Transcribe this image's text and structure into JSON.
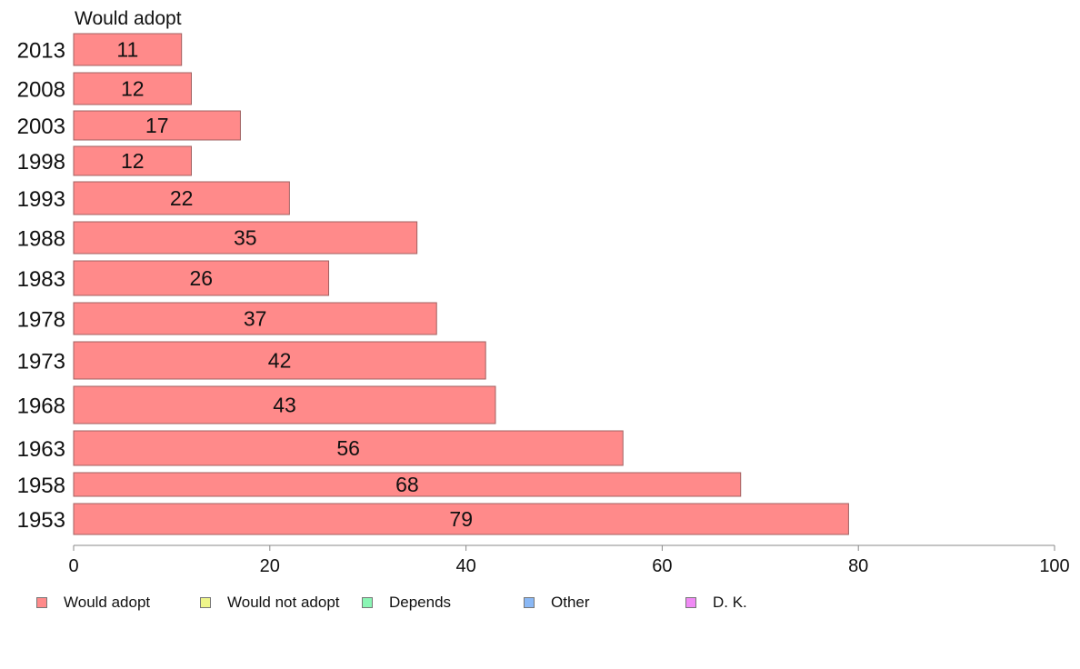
{
  "chart_data": {
    "type": "bar",
    "orientation": "horizontal",
    "series_title": "Would adopt",
    "categories": [
      "2013",
      "2008",
      "2003",
      "1998",
      "1993",
      "1988",
      "1983",
      "1978",
      "1973",
      "1968",
      "1963",
      "1958",
      "1953"
    ],
    "values": [
      11,
      12,
      17,
      12,
      22,
      35,
      26,
      37,
      42,
      43,
      56,
      68,
      79
    ],
    "value_labels": [
      "11",
      "12",
      "17",
      "12",
      "22",
      "35",
      "26",
      "37",
      "42",
      "43",
      "56",
      "68",
      "79"
    ],
    "xlim": [
      0,
      100
    ],
    "x_ticks": [
      "0",
      "20",
      "40",
      "60",
      "80",
      "100"
    ],
    "grid": false,
    "legend_position": "bottom",
    "legend": [
      {
        "label": "Would adopt",
        "color": "#ff8a8a"
      },
      {
        "label": "Would not adopt",
        "color": "#eef58a"
      },
      {
        "label": "Depends",
        "color": "#8af5b4"
      },
      {
        "label": "Other",
        "color": "#8ab8f5"
      },
      {
        "label": "D. K.",
        "color": "#f08af5"
      }
    ],
    "bar_color": "#ff8a8a",
    "bar_border_color": "#a06060"
  }
}
